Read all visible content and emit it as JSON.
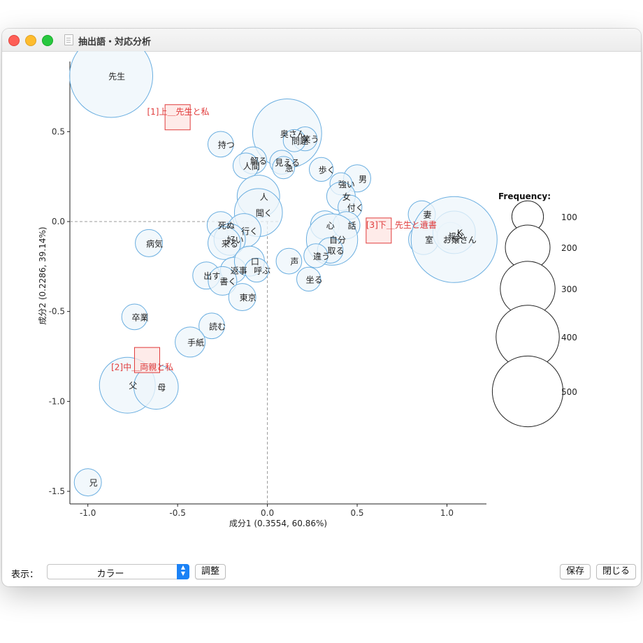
{
  "window": {
    "title": "抽出語・対応分析"
  },
  "colors": {
    "bubble_stroke": "#6aaee0",
    "bubble_fill": "#eef5fb",
    "group": "#e03a3a",
    "group_fill": "#fde4e2"
  },
  "chart_data": {
    "type": "scatter",
    "xlabel": "成分1  (0.3554,  60.86%)",
    "ylabel": "成分2  (0.2286,  39.14%)",
    "xlim": [
      -1.1,
      1.22
    ],
    "ylim": [
      -1.57,
      0.89
    ],
    "xticks": [
      -1.0,
      -0.5,
      0.0,
      0.5,
      1.0
    ],
    "xtick_labels": [
      "-1.0",
      "-0.5",
      "0.0",
      "0.5",
      "1.0"
    ],
    "yticks": [
      -1.5,
      -1.0,
      -0.5,
      0.0,
      0.5
    ],
    "ytick_labels": [
      "-1.5",
      "-1.0",
      "-0.5",
      "0.0",
      "0.5"
    ],
    "legend": {
      "title": "Frequency:",
      "sizes": [
        100,
        200,
        300,
        400,
        500
      ],
      "position": "right"
    },
    "groups": [
      {
        "label": "[1]上＿先生と私",
        "x": -0.5,
        "y": 0.58,
        "lx": -0.67,
        "ly": 0.61
      },
      {
        "label": "[2]中＿両親と私",
        "x": -0.67,
        "y": -0.77,
        "lx": -0.87,
        "ly": -0.81
      },
      {
        "label": "[3]下＿先生と遺書",
        "x": 0.62,
        "y": -0.05,
        "lx": 0.55,
        "ly": -0.02
      }
    ],
    "points": [
      {
        "label": "先生",
        "x": -0.87,
        "y": 0.81,
        "freq": 420
      },
      {
        "label": "持つ",
        "x": -0.26,
        "y": 0.43,
        "freq": 40
      },
      {
        "label": "奥さん",
        "x": 0.11,
        "y": 0.49,
        "freq": 290
      },
      {
        "label": "笑う",
        "x": 0.21,
        "y": 0.46,
        "freq": 35
      },
      {
        "label": "問題",
        "x": 0.15,
        "y": 0.45,
        "freq": 30
      },
      {
        "label": "見える",
        "x": 0.08,
        "y": 0.33,
        "freq": 35
      },
      {
        "label": "解る",
        "x": -0.08,
        "y": 0.34,
        "freq": 45
      },
      {
        "label": "人間",
        "x": -0.12,
        "y": 0.31,
        "freq": 40
      },
      {
        "label": "急",
        "x": 0.09,
        "y": 0.3,
        "freq": 30
      },
      {
        "label": "歩く",
        "x": 0.3,
        "y": 0.29,
        "freq": 35
      },
      {
        "label": "男",
        "x": 0.5,
        "y": 0.24,
        "freq": 45
      },
      {
        "label": "強い",
        "x": 0.41,
        "y": 0.21,
        "freq": 30
      },
      {
        "label": "女",
        "x": 0.41,
        "y": 0.14,
        "freq": 50
      },
      {
        "label": "付く",
        "x": 0.46,
        "y": 0.08,
        "freq": 35
      },
      {
        "label": "人",
        "x": -0.05,
        "y": 0.14,
        "freq": 110
      },
      {
        "label": "聞く",
        "x": -0.05,
        "y": 0.05,
        "freq": 140
      },
      {
        "label": "死ぬ",
        "x": -0.26,
        "y": -0.02,
        "freq": 45
      },
      {
        "label": "行く",
        "x": -0.13,
        "y": -0.05,
        "freq": 70
      },
      {
        "label": "好い",
        "x": -0.21,
        "y": -0.1,
        "freq": 60
      },
      {
        "label": "来る",
        "x": -0.24,
        "y": -0.12,
        "freq": 65
      },
      {
        "label": "病気",
        "x": -0.66,
        "y": -0.12,
        "freq": 45
      },
      {
        "label": "心",
        "x": 0.32,
        "y": -0.02,
        "freq": 50
      },
      {
        "label": "話",
        "x": 0.44,
        "y": -0.02,
        "freq": 45
      },
      {
        "label": "自分",
        "x": 0.36,
        "y": -0.1,
        "freq": 160
      },
      {
        "label": "取る",
        "x": 0.35,
        "y": -0.16,
        "freq": 40
      },
      {
        "label": "違う",
        "x": 0.27,
        "y": -0.19,
        "freq": 35
      },
      {
        "label": "声",
        "x": 0.12,
        "y": -0.22,
        "freq": 40
      },
      {
        "label": "返事",
        "x": -0.19,
        "y": -0.27,
        "freq": 40
      },
      {
        "label": "口",
        "x": -0.1,
        "y": -0.22,
        "freq": 55
      },
      {
        "label": "呼ぶ",
        "x": -0.06,
        "y": -0.27,
        "freq": 35
      },
      {
        "label": "出す",
        "x": -0.34,
        "y": -0.3,
        "freq": 45
      },
      {
        "label": "書く",
        "x": -0.25,
        "y": -0.33,
        "freq": 50
      },
      {
        "label": "坐る",
        "x": 0.23,
        "y": -0.32,
        "freq": 35
      },
      {
        "label": "東京",
        "x": -0.14,
        "y": -0.42,
        "freq": 45
      },
      {
        "label": "卒業",
        "x": -0.74,
        "y": -0.53,
        "freq": 40
      },
      {
        "label": "読む",
        "x": -0.31,
        "y": -0.58,
        "freq": 40
      },
      {
        "label": "手紙",
        "x": -0.43,
        "y": -0.67,
        "freq": 55
      },
      {
        "label": "父",
        "x": -0.78,
        "y": -0.91,
        "freq": 190
      },
      {
        "label": "母",
        "x": -0.62,
        "y": -0.92,
        "freq": 120
      },
      {
        "label": "兄",
        "x": -1.0,
        "y": -1.45,
        "freq": 45
      },
      {
        "label": "妻",
        "x": 0.86,
        "y": 0.04,
        "freq": 45
      },
      {
        "label": "室",
        "x": 0.87,
        "y": -0.1,
        "freq": 55
      },
      {
        "label": "叔父",
        "x": 1.02,
        "y": -0.08,
        "freq": 45
      },
      {
        "label": "K",
        "x": 1.04,
        "y": -0.06,
        "freq": 110
      },
      {
        "label": "お嬢さん",
        "x": 1.04,
        "y": -0.1,
        "freq": 450
      }
    ]
  },
  "bottom": {
    "display_label": "表示：",
    "display_value": "カラー",
    "adjust_label": "調整",
    "save_label": "保存",
    "close_label": "閉じる"
  }
}
